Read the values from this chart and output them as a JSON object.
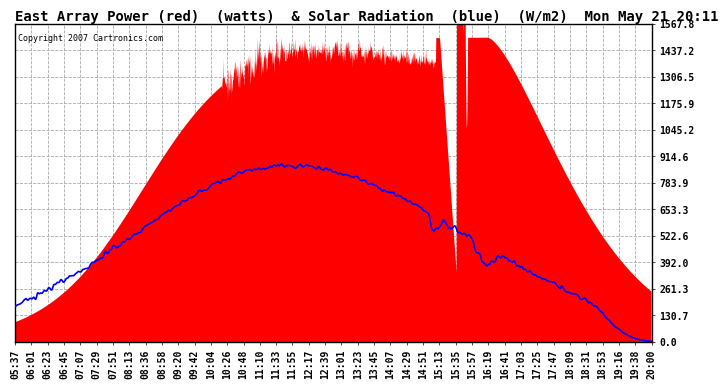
{
  "title": "East Array Power (red)  (watts)  & Solar Radiation  (blue)  (W/m2)  Mon May 21 20:11",
  "copyright": "Copyright 2007 Cartronics.com",
  "background_color": "#ffffff",
  "plot_bg_color": "#ffffff",
  "grid_color": "#aaaaaa",
  "y_max": 1567.8,
  "y_min": 0.0,
  "y_ticks": [
    0.0,
    130.7,
    261.3,
    392.0,
    522.6,
    653.3,
    783.9,
    914.6,
    1045.2,
    1175.9,
    1306.5,
    1437.2,
    1567.8
  ],
  "x_labels": [
    "05:37",
    "06:01",
    "06:23",
    "06:45",
    "07:07",
    "07:29",
    "07:51",
    "08:13",
    "08:36",
    "08:58",
    "09:20",
    "09:42",
    "10:04",
    "10:26",
    "10:48",
    "11:10",
    "11:33",
    "11:55",
    "12:17",
    "12:39",
    "13:01",
    "13:23",
    "13:45",
    "14:07",
    "14:29",
    "14:51",
    "15:13",
    "15:35",
    "15:57",
    "16:19",
    "16:41",
    "17:03",
    "17:25",
    "17:47",
    "18:09",
    "18:31",
    "18:53",
    "19:16",
    "19:38",
    "20:00"
  ],
  "red_color": "#ff0000",
  "blue_color": "#0000ff",
  "title_fontsize": 10,
  "tick_fontsize": 7
}
